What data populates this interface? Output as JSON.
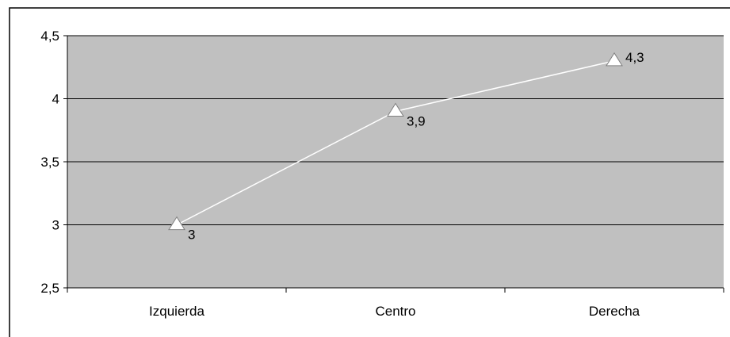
{
  "chart_data": {
    "type": "line",
    "title": "",
    "xlabel": "",
    "ylabel": "",
    "categories": [
      "Izquierda",
      "Centro",
      "Derecha"
    ],
    "series": [
      {
        "values": [
          3,
          3.9,
          4.3
        ],
        "data_labels": [
          "3",
          "3,9",
          "4,3"
        ],
        "marker": "triangle"
      }
    ],
    "ylim": [
      2.5,
      4.5
    ],
    "yticks": [
      2.5,
      3,
      3.5,
      4,
      4.5
    ],
    "ytick_labels": [
      "2,5",
      "3",
      "3,5",
      "4",
      "4,5"
    ],
    "grid": true,
    "legend": "none",
    "colors": {
      "plot_background": "#c0c0c0",
      "line": "#ffffff",
      "marker_fill": "#ffffff",
      "marker_stroke": "#808080",
      "gridline": "#000000"
    }
  }
}
